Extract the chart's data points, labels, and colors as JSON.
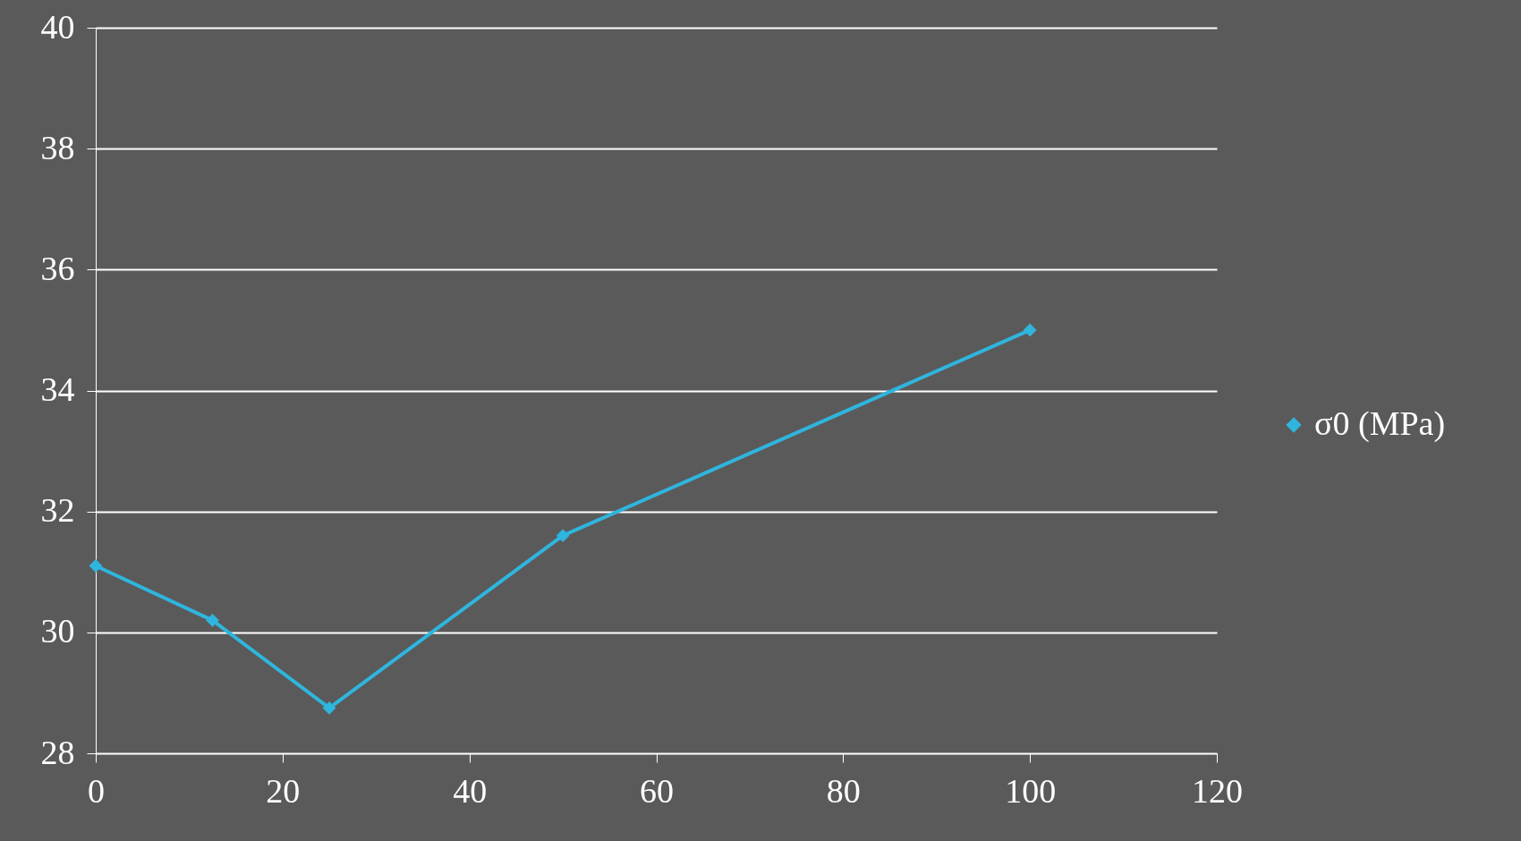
{
  "chart_data": {
    "type": "line",
    "x": [
      0,
      12.5,
      25,
      50,
      100
    ],
    "series": [
      {
        "name": "σ0 (MPa)",
        "color": "#2fb5de",
        "values": [
          31.1,
          30.2,
          28.75,
          31.6,
          35.0
        ]
      }
    ],
    "xlim": [
      0,
      120
    ],
    "xticks": [
      0,
      20,
      40,
      60,
      80,
      100,
      120
    ],
    "ylim": [
      28,
      40
    ],
    "yticks": [
      28,
      30,
      32,
      34,
      36,
      38,
      40
    ],
    "grid": "y",
    "legend": "right",
    "marker": "diamond",
    "line_style": "solid"
  }
}
